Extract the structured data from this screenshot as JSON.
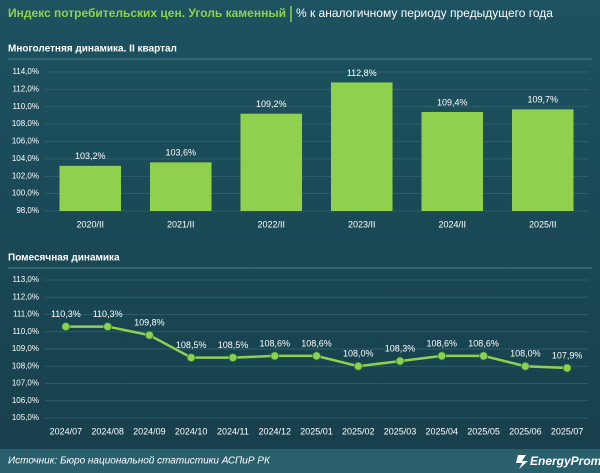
{
  "title": "Индекс потребительских цен. Уголь каменный",
  "subtitle": "% к аналогичному периоду предыдущего года",
  "source": "Источник: Бюро национальной статистики АСПиР РК",
  "logo": "EnergyProm",
  "chart_data": [
    {
      "type": "bar",
      "title": "Многолетняя динамика. II квартал",
      "color": "#8fd14f",
      "categories": [
        "2020/II",
        "2021/II",
        "2022/II",
        "2023/II",
        "2024/II",
        "2025/II"
      ],
      "values": [
        103.2,
        103.6,
        109.2,
        112.8,
        109.4,
        109.7
      ],
      "value_labels": [
        "103,2%",
        "103,6%",
        "109,2%",
        "112,8%",
        "109,4%",
        "109,7%"
      ],
      "ylim": [
        98,
        114
      ],
      "yticks": [
        {
          "value": 98,
          "label": "98,0%"
        },
        {
          "value": 100,
          "label": "100,0%"
        },
        {
          "value": 102,
          "label": "102,0%"
        },
        {
          "value": 104,
          "label": "104,0%"
        },
        {
          "value": 106,
          "label": "106,0%"
        },
        {
          "value": 108,
          "label": "108,0%"
        },
        {
          "value": 110,
          "label": "110,0%"
        },
        {
          "value": 112,
          "label": "112,0%"
        },
        {
          "value": 114,
          "label": "114,0%"
        }
      ],
      "grid": true
    },
    {
      "type": "line",
      "title": "Помесячная динамика",
      "color": "#8fd14f",
      "categories": [
        "2024/07",
        "2024/08",
        "2024/09",
        "2024/10",
        "2024/11",
        "2024/12",
        "2025/01",
        "2025/02",
        "2025/03",
        "2025/04",
        "2025/05",
        "2025/06",
        "2025/07"
      ],
      "values": [
        110.3,
        110.3,
        109.8,
        108.5,
        108.5,
        108.6,
        108.6,
        108.0,
        108.3,
        108.6,
        108.6,
        108.0,
        107.9
      ],
      "value_labels": [
        "110,3%",
        "110,3%",
        "109,8%",
        "108,5%",
        "108,5%",
        "108,6%",
        "108,6%",
        "108,0%",
        "108,3%",
        "108,6%",
        "108,6%",
        "108,0%",
        "107,9%"
      ],
      "ylim": [
        105,
        113
      ],
      "yticks": [
        {
          "value": 105,
          "label": "105,0%"
        },
        {
          "value": 106,
          "label": "106,0%"
        },
        {
          "value": 107,
          "label": "107,0%"
        },
        {
          "value": 108,
          "label": "108,0%"
        },
        {
          "value": 109,
          "label": "109,0%"
        },
        {
          "value": 110,
          "label": "110,0%"
        },
        {
          "value": 111,
          "label": "111,0%"
        },
        {
          "value": 112,
          "label": "112,0%"
        },
        {
          "value": 113,
          "label": "113,0%"
        }
      ],
      "grid": true
    }
  ]
}
